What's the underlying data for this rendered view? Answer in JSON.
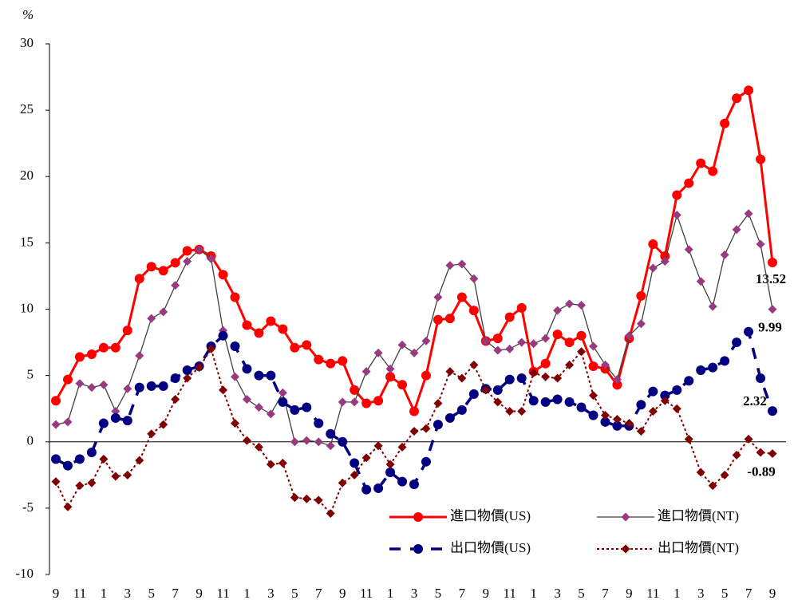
{
  "chart_data": {
    "type": "line",
    "y_label": "%",
    "categories": [
      "9",
      null,
      "11",
      null,
      "1",
      null,
      "3",
      null,
      "5",
      null,
      "7",
      null,
      "9",
      null,
      "11",
      null,
      "1",
      null,
      "3",
      null,
      "5",
      null,
      "7",
      null,
      "9",
      null,
      "11",
      null,
      "1",
      null,
      "3",
      null,
      "5",
      null,
      "7",
      null,
      "9",
      null,
      "11",
      null,
      "1",
      null,
      "3",
      null,
      "5",
      null,
      "7",
      null,
      "9",
      null,
      "11",
      null,
      "1",
      null,
      "3",
      null,
      "5",
      null,
      "7",
      null,
      "9"
    ],
    "ylim": [
      -10,
      30
    ],
    "yticks": [
      -10,
      -5,
      0,
      5,
      10,
      15,
      20,
      25,
      30
    ],
    "legend": "lower right",
    "series": [
      {
        "name": "進口物價(US)",
        "color": "#ff0000",
        "line_color": "#ff0000",
        "marker": "circle",
        "dash": "solid",
        "line_width": 3,
        "values": [
          3.1,
          4.7,
          6.4,
          6.6,
          7.1,
          7.1,
          8.4,
          12.3,
          13.2,
          12.9,
          13.5,
          14.4,
          14.5,
          14.0,
          12.6,
          10.9,
          8.8,
          8.2,
          9.1,
          8.5,
          7.1,
          7.3,
          6.2,
          5.9,
          6.1,
          3.9,
          2.9,
          3.1,
          4.9,
          4.3,
          2.3,
          5.0,
          9.2,
          9.3,
          10.9,
          9.9,
          7.6,
          7.8,
          9.4,
          10.1,
          5.3,
          5.9,
          8.1,
          7.5,
          8.0,
          5.7,
          5.5,
          4.3,
          7.8,
          11.0,
          14.9,
          14.0,
          18.6,
          19.5,
          21.0,
          20.4,
          24.0,
          25.9,
          26.5,
          21.3,
          13.52
        ]
      },
      {
        "name": "進口物價(NT)",
        "color": "#993a80",
        "line_color": "#404040",
        "marker": "diamond",
        "dash": "solid",
        "line_width": 1.3,
        "values": [
          1.3,
          1.5,
          4.4,
          4.1,
          4.3,
          2.3,
          4.0,
          6.5,
          9.3,
          9.8,
          11.8,
          13.6,
          14.5,
          13.8,
          8.4,
          4.9,
          3.2,
          2.6,
          2.1,
          3.7,
          0.0,
          0.1,
          0.0,
          -0.3,
          3.0,
          3.0,
          5.3,
          6.7,
          5.5,
          7.3,
          6.7,
          7.6,
          10.9,
          13.3,
          13.4,
          12.3,
          7.6,
          6.9,
          7.0,
          7.5,
          7.4,
          7.8,
          9.9,
          10.4,
          10.3,
          7.2,
          5.8,
          4.7,
          8.0,
          8.9,
          13.1,
          13.6,
          17.1,
          14.5,
          12.1,
          10.2,
          14.1,
          16.0,
          17.2,
          14.9,
          9.99
        ]
      },
      {
        "name": "出口物價(US)",
        "color": "#000080",
        "line_color": "#000080",
        "marker": "circle",
        "dash": "dashed",
        "line_width": 3.5,
        "values": [
          -1.3,
          -1.8,
          -1.3,
          -0.8,
          1.4,
          1.8,
          1.6,
          4.1,
          4.2,
          4.2,
          4.8,
          5.4,
          5.7,
          7.2,
          8.0,
          7.2,
          5.5,
          5.0,
          5.0,
          3.0,
          2.4,
          2.6,
          1.4,
          0.6,
          0.0,
          -1.6,
          -3.6,
          -3.5,
          -2.3,
          -3.0,
          -3.2,
          -1.5,
          1.3,
          1.8,
          2.4,
          3.6,
          4.0,
          3.9,
          4.7,
          4.8,
          3.1,
          3.0,
          3.2,
          3.0,
          2.6,
          2.0,
          1.5,
          1.2,
          1.2,
          2.8,
          3.8,
          3.5,
          3.9,
          4.6,
          5.4,
          5.6,
          6.1,
          7.5,
          8.3,
          4.8,
          2.32
        ]
      },
      {
        "name": "出口物價(NT)",
        "color": "#800000",
        "line_color": "#800000",
        "marker": "diamond",
        "dash": "dotted",
        "line_width": 2,
        "values": [
          -3.0,
          -4.9,
          -3.3,
          -3.1,
          -1.3,
          -2.6,
          -2.5,
          -1.4,
          0.6,
          1.3,
          3.2,
          4.8,
          5.6,
          7.0,
          3.9,
          1.4,
          0.1,
          -0.4,
          -1.7,
          -1.6,
          -4.2,
          -4.3,
          -4.4,
          -5.4,
          -3.1,
          -2.5,
          -1.2,
          -0.3,
          -1.7,
          -0.4,
          0.8,
          1.0,
          2.9,
          5.3,
          4.8,
          5.8,
          3.9,
          3.0,
          2.3,
          2.3,
          5.2,
          4.9,
          4.8,
          5.8,
          6.8,
          3.5,
          2.0,
          1.7,
          1.4,
          0.8,
          2.3,
          3.1,
          2.5,
          0.2,
          -2.3,
          -3.3,
          -2.5,
          -1.0,
          0.2,
          -0.8,
          -0.89
        ]
      }
    ]
  }
}
